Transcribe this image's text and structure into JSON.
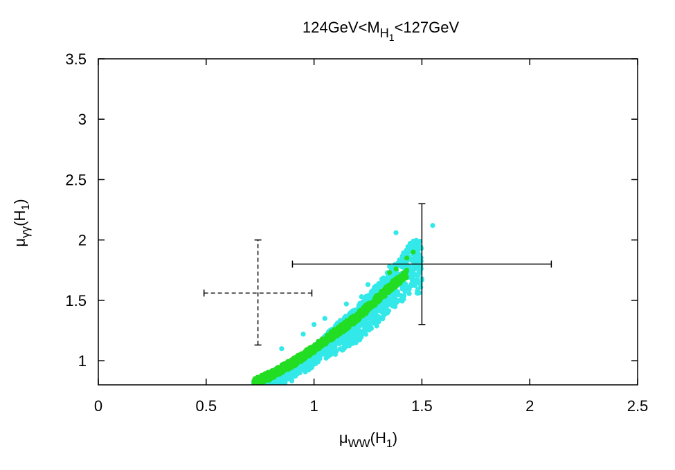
{
  "chart_data": {
    "type": "scatter",
    "title": {
      "text": "124GeV<M",
      "sub1": "H",
      "sub2": "1",
      "suffix": "<127GeV"
    },
    "xlabel": {
      "main": "μ",
      "sub": "WW",
      "suffix": "(H",
      "sub2": "1",
      "close": ")"
    },
    "ylabel": {
      "main": "μ",
      "sub": "γγ",
      "suffix": "(H",
      "sub2": "1",
      "close": ")"
    },
    "xlim": [
      0,
      2.5
    ],
    "ylim": [
      0.8,
      3.5
    ],
    "xticks": [
      0,
      0.5,
      1,
      1.5,
      2,
      2.5
    ],
    "xtick_labels": [
      "0",
      "0.5",
      "1",
      "1.5",
      "2",
      "2.5"
    ],
    "yticks": [
      1,
      1.5,
      2,
      2.5,
      3,
      3.5
    ],
    "ytick_labels": [
      "1",
      "1.5",
      "2",
      "2.5",
      "3",
      "3.5"
    ],
    "grid": false,
    "colors": {
      "cyan": "#33e8e8",
      "green": "#22dd22",
      "axis": "#000000"
    },
    "series": [
      {
        "color": "#33e8e8",
        "style": "points",
        "region": {
          "x_range": [
            0.72,
            1.5
          ],
          "lower_edge": [
            [
              0.87,
              0.8
            ],
            [
              1.0,
              0.95
            ],
            [
              1.1,
              1.05
            ],
            [
              1.2,
              1.15
            ],
            [
              1.3,
              1.3
            ],
            [
              1.45,
              1.55
            ]
          ],
          "upper_edge": [
            [
              0.72,
              0.84
            ],
            [
              0.9,
              1.0
            ],
            [
              1.0,
              1.12
            ],
            [
              1.1,
              1.3
            ],
            [
              1.2,
              1.45
            ],
            [
              1.3,
              1.65
            ],
            [
              1.4,
              1.85
            ],
            [
              1.45,
              2.0
            ]
          ]
        },
        "outliers": [
          [
            1.38,
            2.06
          ],
          [
            1.55,
            2.12
          ],
          [
            1.45,
            1.93
          ],
          [
            1.35,
            1.78
          ],
          [
            1.22,
            1.53
          ],
          [
            1.15,
            1.47
          ],
          [
            1.05,
            1.35
          ],
          [
            1.0,
            1.3
          ],
          [
            0.95,
            1.22
          ],
          [
            1.25,
            1.63
          ],
          [
            0.85,
            1.1
          ]
        ]
      },
      {
        "color": "#22dd22",
        "style": "points",
        "band": [
          [
            0.72,
            0.82
          ],
          [
            0.8,
            0.88
          ],
          [
            0.9,
            0.98
          ],
          [
            1.0,
            1.1
          ],
          [
            1.1,
            1.23
          ],
          [
            1.2,
            1.36
          ],
          [
            1.3,
            1.52
          ],
          [
            1.38,
            1.65
          ],
          [
            1.43,
            1.72
          ]
        ],
        "extra": [
          [
            1.46,
            1.9
          ],
          [
            1.43,
            1.85
          ],
          [
            1.38,
            1.76
          ],
          [
            1.35,
            1.73
          ]
        ]
      }
    ],
    "error_bars": [
      {
        "x": 0.74,
        "y": 1.56,
        "xerr": [
          0.49,
          0.99
        ],
        "yerr": [
          1.13,
          2.0
        ],
        "style": "dashed"
      },
      {
        "x": 1.5,
        "y": 1.8,
        "xerr": [
          0.9,
          2.1
        ],
        "yerr": [
          1.3,
          2.3
        ],
        "style": "solid"
      }
    ]
  }
}
